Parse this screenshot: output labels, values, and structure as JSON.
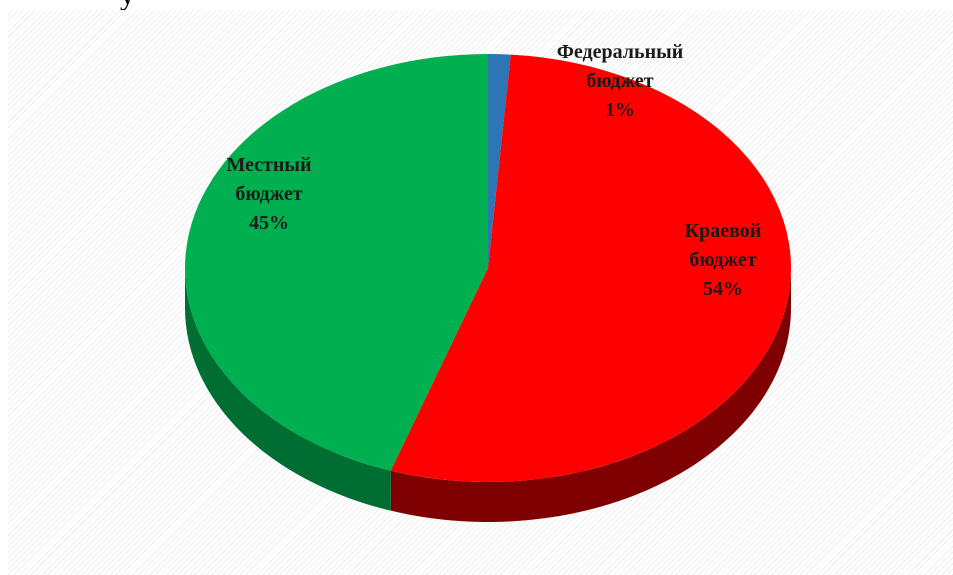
{
  "chart_data": {
    "type": "pie",
    "style": "3d",
    "slices": [
      {
        "label_lines": [
          "Федеральный",
          "бюджет"
        ],
        "percent_label": "1%",
        "value": 1.2,
        "color": "#2e75b6",
        "side_color": "#1f4e79"
      },
      {
        "label_lines": [
          "Краевой",
          "бюджет"
        ],
        "percent_label": "54%",
        "value": 54,
        "color": "#ff0000",
        "side_color": "#7f0000"
      },
      {
        "label_lines": [
          "Местный",
          "бюджет"
        ],
        "percent_label": "45%",
        "value": 44.8,
        "color": "#00b050",
        "side_color": "#006e32"
      }
    ]
  }
}
